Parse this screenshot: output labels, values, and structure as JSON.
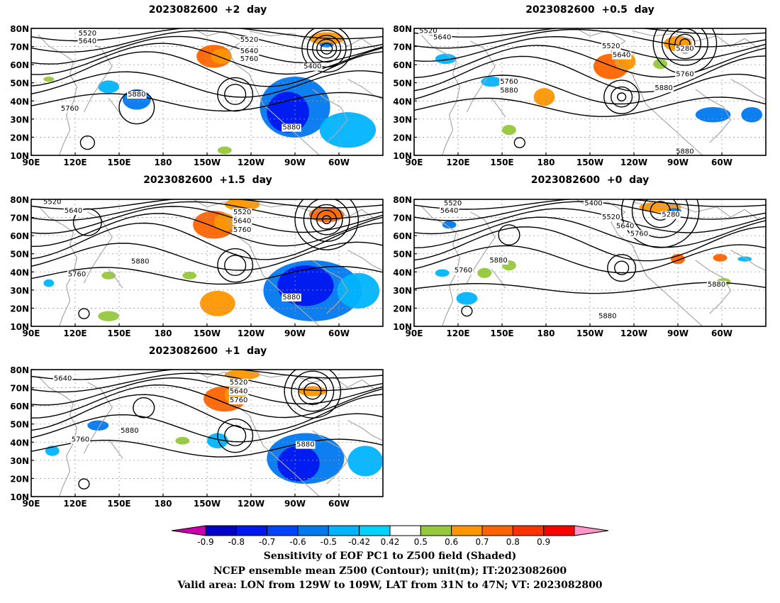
{
  "panels": [
    {
      "title": "2023082600  +2  day",
      "contour_labels": [
        "5520",
        "5640",
        "5520",
        "5640",
        "5760",
        "5400",
        "5880",
        "5760",
        "5880"
      ]
    },
    {
      "title": "2023082600  +0.5  day",
      "contour_labels": [
        "5520",
        "5640",
        "5520",
        "5640",
        "5280",
        "5760",
        "5760",
        "5880",
        "5880",
        "5880"
      ]
    },
    {
      "title": "2023082600  +1.5  day",
      "contour_labels": [
        "5520",
        "5640",
        "5520",
        "5640",
        "5760",
        "5880",
        "5760",
        "5880"
      ]
    },
    {
      "title": "2023082600  +0  day",
      "contour_labels": [
        "5520",
        "5640",
        "5400",
        "5520",
        "5640",
        "5760",
        "5280",
        "5760",
        "5880",
        "5880",
        "5880"
      ]
    },
    {
      "title": "2023082600  +1  day",
      "contour_labels": [
        "5640",
        "5520",
        "5640",
        "5760",
        "5880",
        "5760",
        "5880"
      ]
    }
  ],
  "axes": {
    "lat_ticks": [
      "80N",
      "70N",
      "60N",
      "50N",
      "40N",
      "30N",
      "20N",
      "10N"
    ],
    "lon_ticks": [
      "90E",
      "120E",
      "150E",
      "180",
      "150W",
      "120W",
      "90W",
      "60W"
    ]
  },
  "colorbar": {
    "tick_labels": [
      "-0.9",
      "-0.8",
      "-0.7",
      "-0.6",
      "-0.5",
      "-0.42",
      "0.42",
      "0.5",
      "0.6",
      "0.7",
      "0.8",
      "0.9"
    ],
    "colors": [
      "#cc00aa",
      "#0000c8",
      "#0018f0",
      "#0044ff",
      "#0078f0",
      "#00b4ff",
      "#00d2ff",
      "#ffffff",
      "#96c83c",
      "#ff9600",
      "#ff6400",
      "#ff3200",
      "#ff0000",
      "#ff96c8"
    ]
  },
  "captions": {
    "line1": "Sensitivity of EOF PC1 to Z500 field (Shaded)",
    "line2": "NCEP ensemble mean Z500 (Contour); unit(m); IT:2023082600",
    "line3": "Valid area: LON from 129W to 109W, LAT from 31N to 47N; VT: 2023082800"
  }
}
